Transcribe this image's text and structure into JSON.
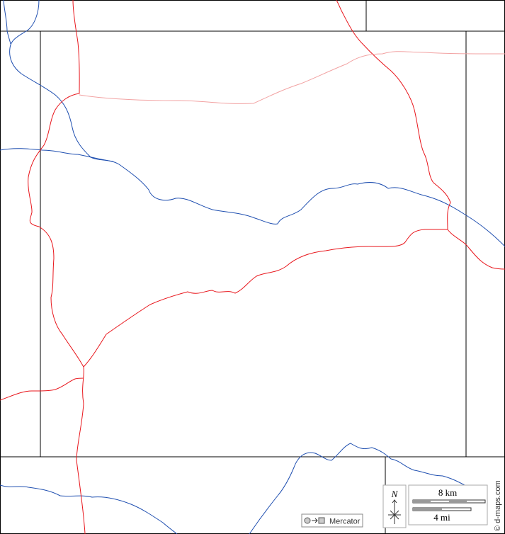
{
  "compass": "N",
  "scale_km": "8 km",
  "scale_mi": "4 mi",
  "projection": "Mercator",
  "credit": "© d-maps.com"
}
